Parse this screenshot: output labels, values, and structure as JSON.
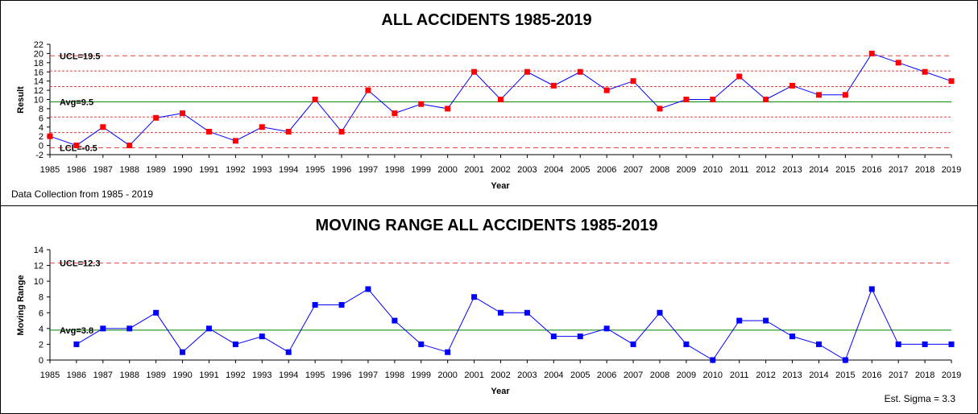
{
  "chart_data": [
    {
      "type": "line",
      "title": "ALL ACCIDENTS 1985-2019",
      "xlabel": "Year",
      "ylabel": "Result",
      "note": "Data Collection from 1985 - 2019",
      "ylim": [
        -2,
        22
      ],
      "yticks": [
        -2,
        0,
        2,
        4,
        6,
        8,
        10,
        12,
        14,
        16,
        18,
        20,
        22
      ],
      "categories": [
        "1985",
        "1986",
        "1987",
        "1988",
        "1989",
        "1990",
        "1991",
        "1992",
        "1993",
        "1994",
        "1995",
        "1996",
        "1997",
        "1998",
        "1999",
        "2000",
        "2001",
        "2002",
        "2003",
        "2004",
        "2005",
        "2006",
        "2007",
        "2008",
        "2009",
        "2010",
        "2011",
        "2012",
        "2013",
        "2014",
        "2015",
        "2016",
        "2017",
        "2018",
        "2019"
      ],
      "series": [
        {
          "values": [
            2,
            0,
            4,
            0,
            6,
            7,
            3,
            1,
            4,
            3,
            10,
            3,
            12,
            7,
            9,
            8,
            16,
            10,
            16,
            13,
            16,
            12,
            14,
            8,
            10,
            10,
            15,
            10,
            13,
            11,
            11,
            20,
            18,
            16,
            14
          ],
          "color": "#0000ff",
          "marker_color": "#ff0000",
          "marker": "square"
        }
      ],
      "reference_lines": [
        {
          "label": "UCL=19.5",
          "value": 19.5,
          "color": "#e04040",
          "style": "dashed"
        },
        {
          "label": "",
          "value": 16.2,
          "color": "#e04040",
          "style": "dotted"
        },
        {
          "label": "",
          "value": 12.8,
          "color": "#e04040",
          "style": "dotted"
        },
        {
          "label": "Avg=9.5",
          "value": 9.5,
          "color": "#008000",
          "style": "solid"
        },
        {
          "label": "",
          "value": 6.2,
          "color": "#e04040",
          "style": "dotted"
        },
        {
          "label": "",
          "value": 2.8,
          "color": "#e04040",
          "style": "dotted"
        },
        {
          "label": "LCL=-0.5",
          "value": -0.5,
          "color": "#e04040",
          "style": "dashed"
        }
      ],
      "grid": false
    },
    {
      "type": "line",
      "title": "MOVING RANGE ALL ACCIDENTS 1985-2019",
      "xlabel": "Year",
      "ylabel": "Moving Range",
      "note": "Est. Sigma = 3.3",
      "ylim": [
        0,
        14
      ],
      "yticks": [
        0,
        2,
        4,
        6,
        8,
        10,
        12,
        14
      ],
      "categories": [
        "1985",
        "1986",
        "1987",
        "1988",
        "1989",
        "1990",
        "1991",
        "1992",
        "1993",
        "1994",
        "1995",
        "1996",
        "1997",
        "1998",
        "1999",
        "2000",
        "2001",
        "2002",
        "2003",
        "2004",
        "2005",
        "2006",
        "2007",
        "2008",
        "2009",
        "2010",
        "2011",
        "2012",
        "2013",
        "2014",
        "2015",
        "2016",
        "2017",
        "2018",
        "2019"
      ],
      "series": [
        {
          "values": [
            null,
            2,
            4,
            4,
            6,
            1,
            4,
            2,
            3,
            1,
            7,
            7,
            9,
            5,
            2,
            1,
            8,
            6,
            6,
            3,
            3,
            4,
            2,
            6,
            2,
            0,
            5,
            5,
            3,
            2,
            0,
            9,
            2,
            2,
            2
          ],
          "color": "#0000ff",
          "marker_color": "#0000ff",
          "marker": "square"
        }
      ],
      "reference_lines": [
        {
          "label": "UCL=12.3",
          "value": 12.3,
          "color": "#e04040",
          "style": "dashed"
        },
        {
          "label": "Avg=3.8",
          "value": 3.8,
          "color": "#008000",
          "style": "solid"
        }
      ],
      "grid": false
    }
  ]
}
